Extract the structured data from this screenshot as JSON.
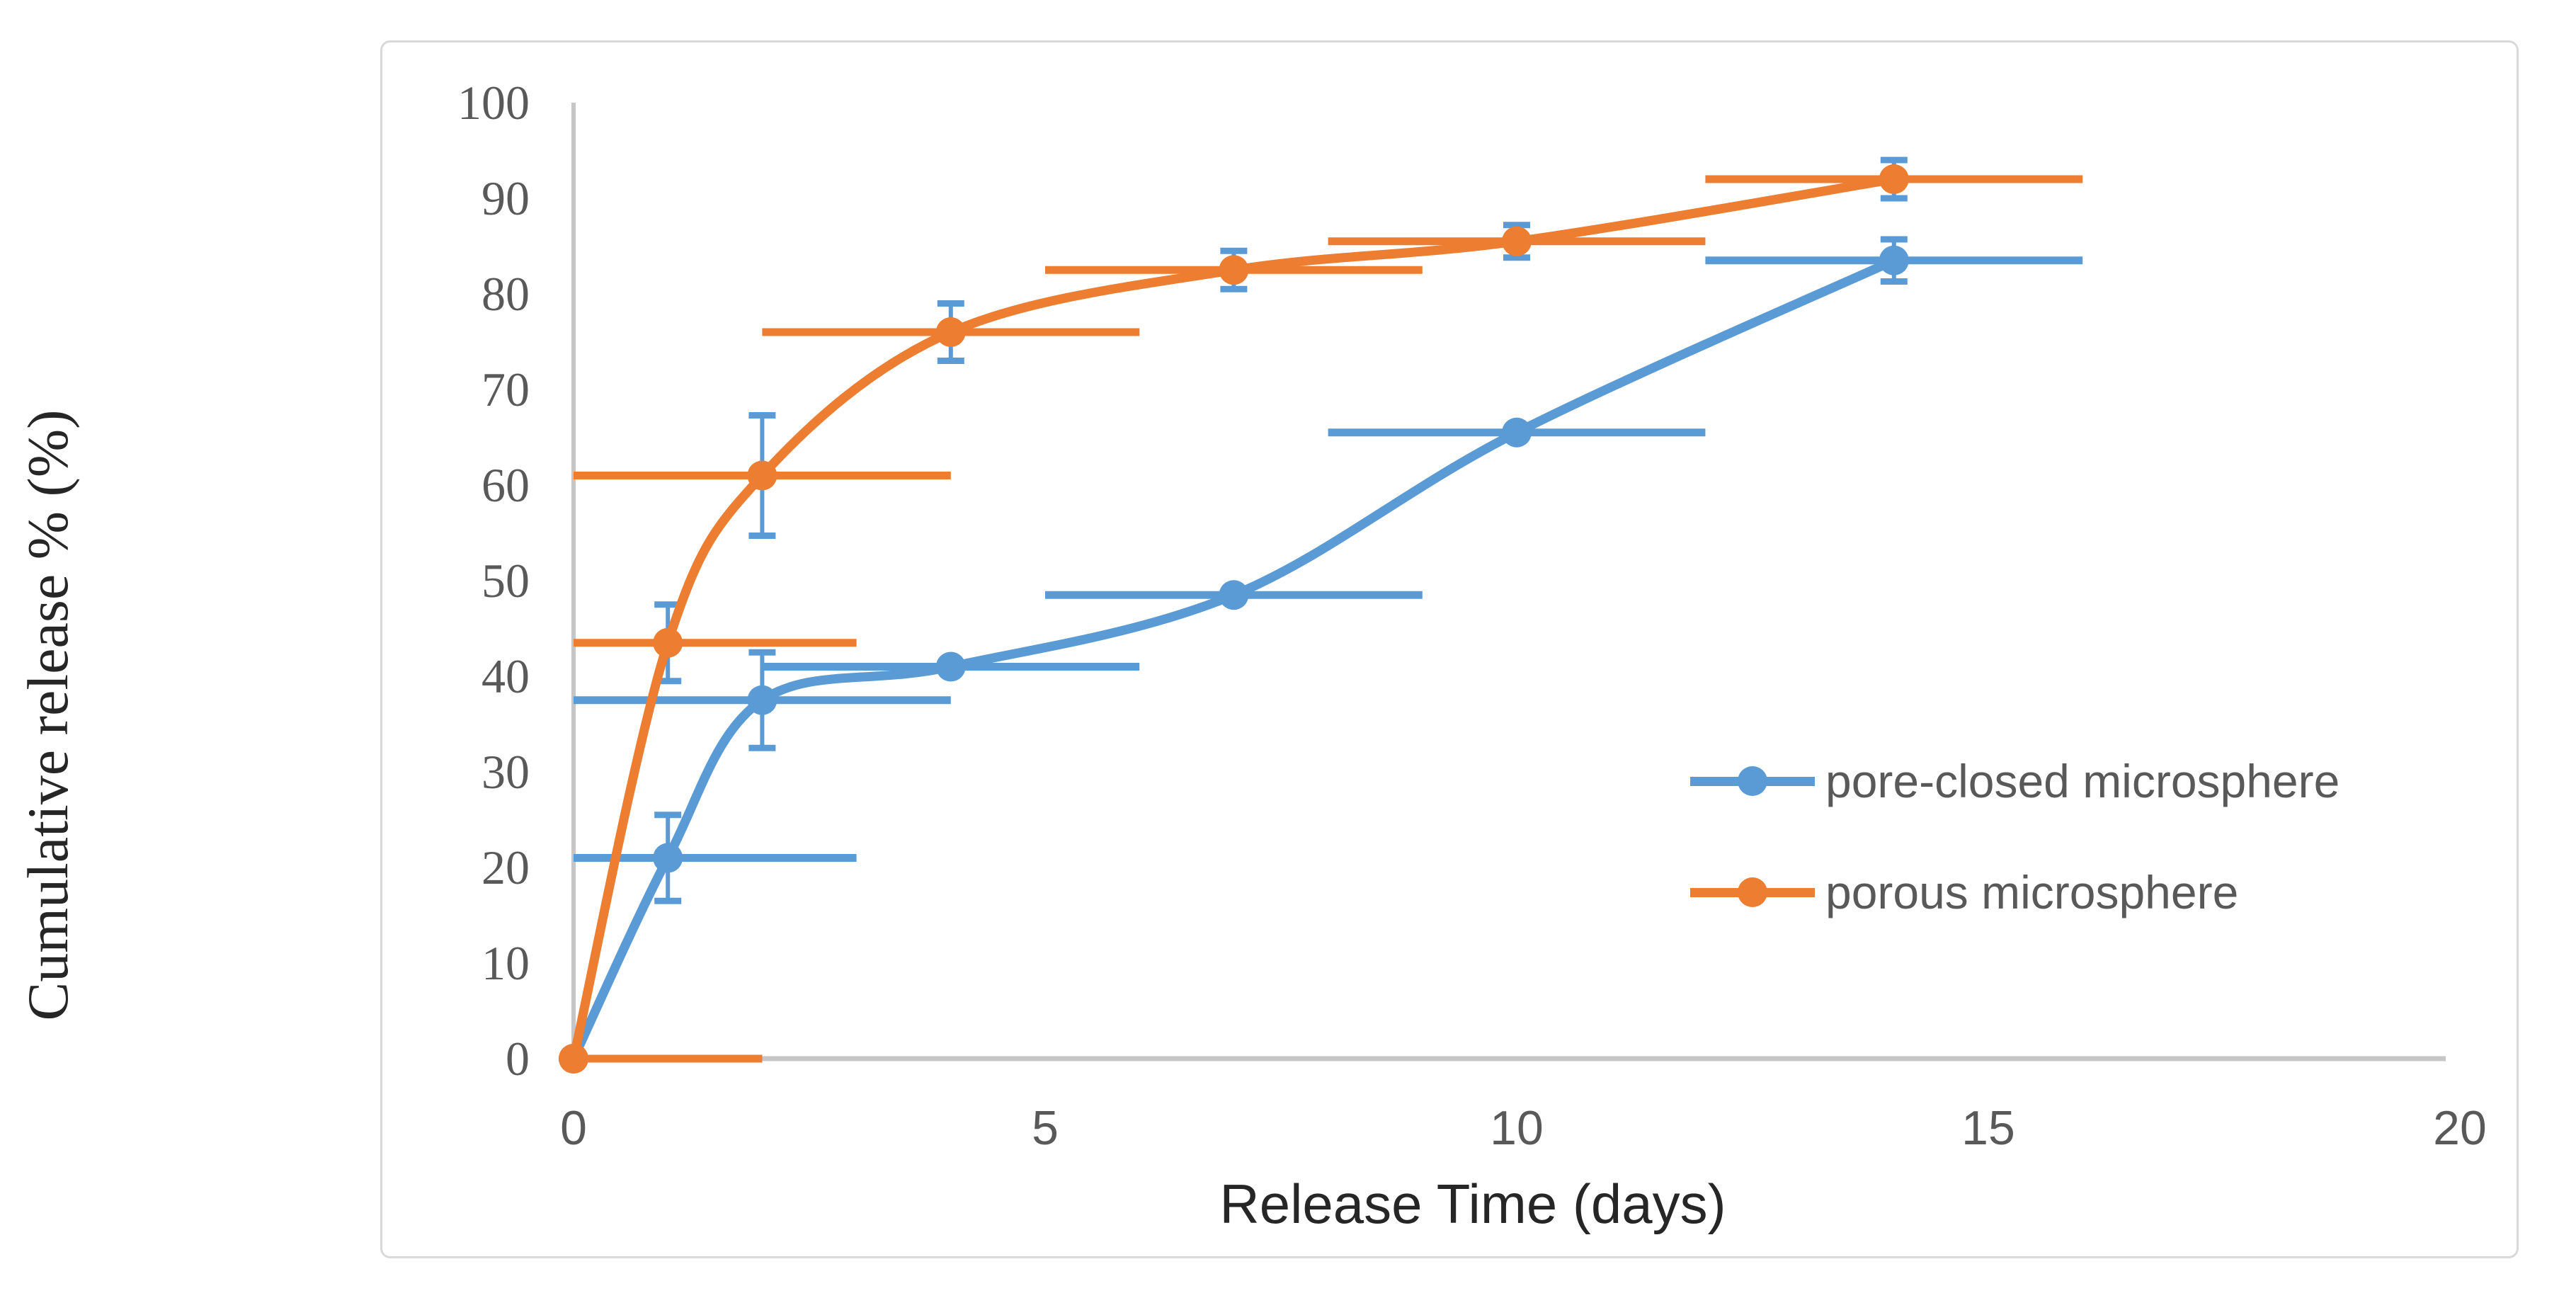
{
  "figure": {
    "background": "#ffffff",
    "frame_color": "#D9D9D9",
    "axis_line_color": "#C6C6C6",
    "tick_label_color": "#595959",
    "title_color": "#262626"
  },
  "legend": {
    "items": [
      {
        "label": "pore-closed microsphere",
        "color": "#5B9BD5"
      },
      {
        "label": "porous microsphere",
        "color": "#ED7D31"
      }
    ],
    "position": "inside-right"
  },
  "chart_data": {
    "type": "line",
    "title": "",
    "xlabel": "Release Time (days)",
    "ylabel": "Cumulative release % (%)",
    "xlim": [
      0,
      20
    ],
    "ylim": [
      0,
      100
    ],
    "x_ticks": [
      0,
      5,
      10,
      15,
      20
    ],
    "y_ticks": [
      0,
      10,
      20,
      30,
      40,
      50,
      60,
      70,
      80,
      90,
      100
    ],
    "grid": false,
    "smooth_lines": true,
    "marker": "circle",
    "x": [
      0,
      1,
      2,
      4,
      7,
      10,
      14
    ],
    "series": [
      {
        "name": "pore-closed microsphere",
        "color": "#5B9BD5",
        "values": [
          0,
          21,
          37.5,
          41,
          48.5,
          65.5,
          83.5
        ],
        "y_error": [
          0,
          4.5,
          5,
          0,
          0,
          0,
          2.2
        ],
        "x_error": 2
      },
      {
        "name": "porous microsphere",
        "color": "#ED7D31",
        "values": [
          0,
          43.5,
          61,
          76,
          82.5,
          85.5,
          92
        ],
        "y_error": [
          0,
          4,
          6.3,
          3,
          2,
          1.7,
          2
        ],
        "x_error": 2
      }
    ],
    "y_error_bar_color": "#5B9BD5",
    "x_error_bars_clipped_at_x": 0,
    "legend_entries": [
      "pore-closed microsphere",
      "porous microsphere"
    ]
  }
}
